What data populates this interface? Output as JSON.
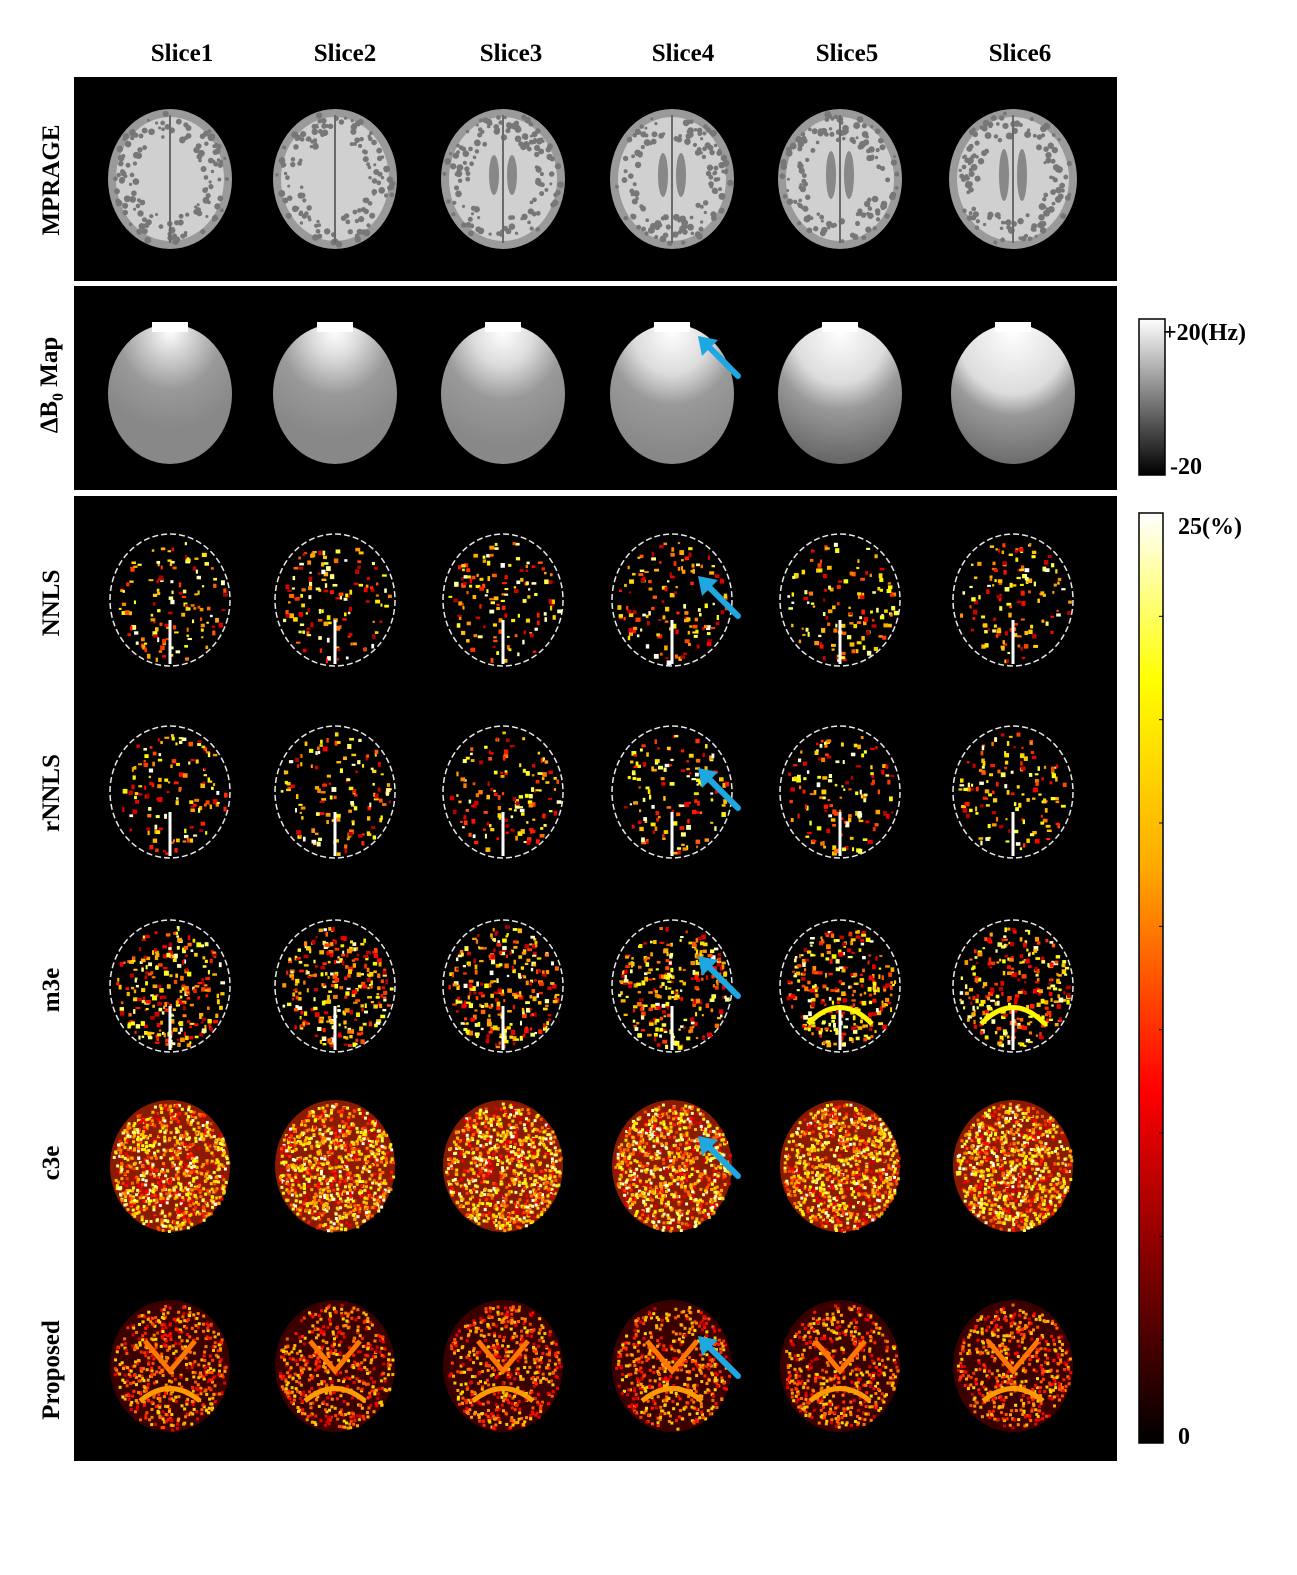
{
  "columns": [
    "Slice1",
    "Slice2",
    "Slice3",
    "Slice4",
    "Slice5",
    "Slice6"
  ],
  "rows": [
    {
      "label": "MPRAGE",
      "kind": "mprage"
    },
    {
      "label": "ΔB",
      "sub": "0",
      "suffix": " Map",
      "kind": "b0"
    },
    {
      "label": "NNLS",
      "kind": "sparse"
    },
    {
      "label": "rNNLS",
      "kind": "sparse"
    },
    {
      "label": "m3e",
      "kind": "medium"
    },
    {
      "label": "c3e",
      "kind": "noisy"
    },
    {
      "label": "Proposed",
      "kind": "proposed"
    }
  ],
  "colorbar_b0": {
    "max_label": "+20(Hz)",
    "min_label": "-20",
    "colors": [
      "#000000",
      "#ffffff"
    ]
  },
  "colorbar_mwf": {
    "max_label": "25(%)",
    "min_label": "0",
    "colors": [
      "#000000",
      "#ff0000",
      "#ffaa00",
      "#ffff00",
      "#ffffff"
    ]
  },
  "arrow_color": "#1ea7e0",
  "arrows": [
    {
      "row": 1,
      "col": 3
    },
    {
      "row": 2,
      "col": 3
    },
    {
      "row": 3,
      "col": 3
    },
    {
      "row": 4,
      "col": 3
    },
    {
      "row": 5,
      "col": 3
    },
    {
      "row": 6,
      "col": 3
    }
  ]
}
